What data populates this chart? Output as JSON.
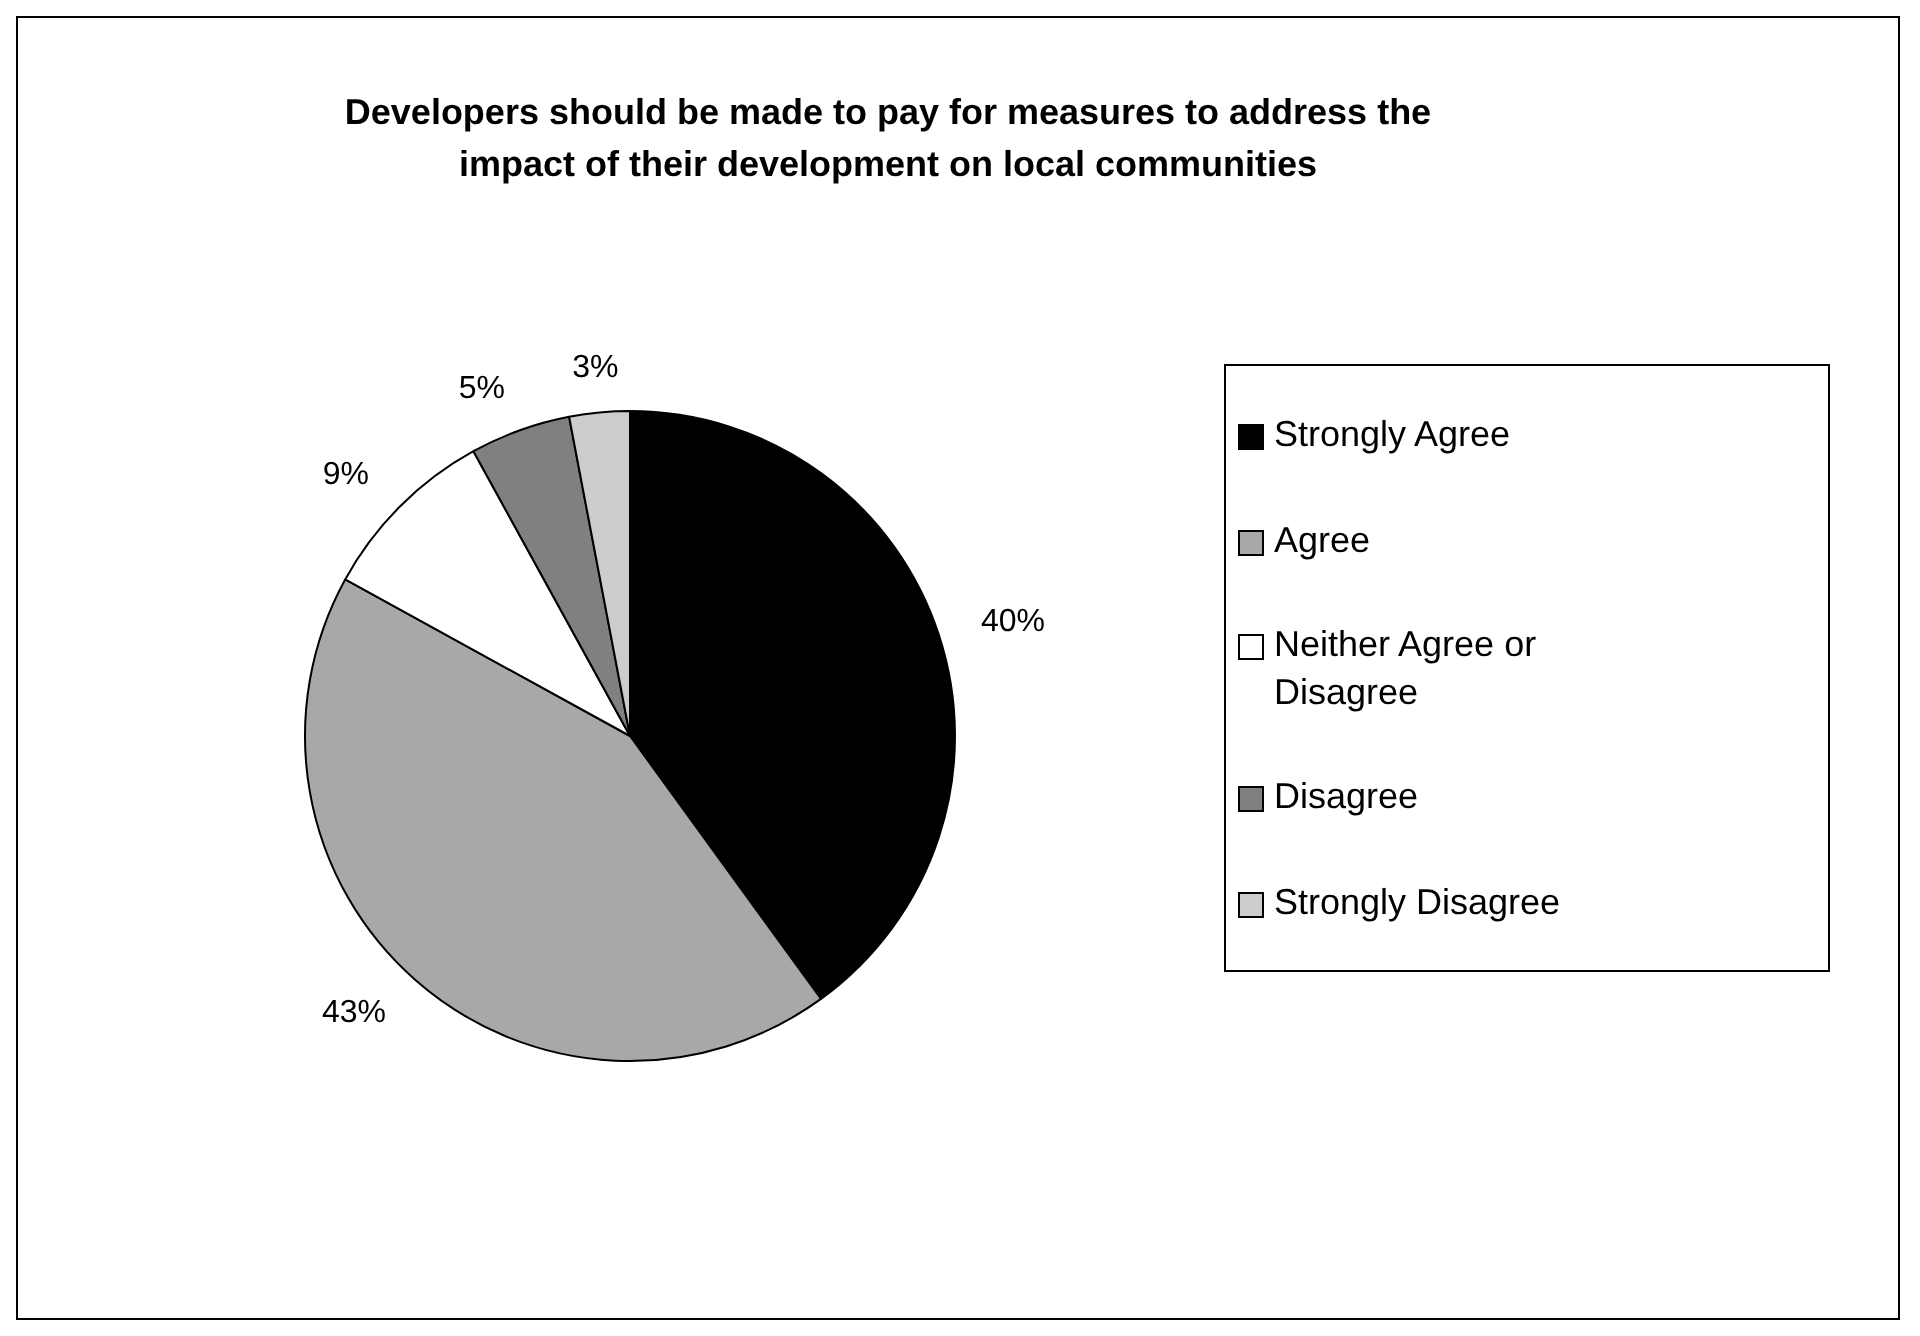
{
  "chart_data": {
    "type": "pie",
    "title": "Developers should be made to pay for measures to address the impact of their development on local communities",
    "categories": [
      "Strongly Agree",
      "Agree",
      "Neither Agree or Disagree",
      "Disagree",
      "Strongly Disagree"
    ],
    "values": [
      40,
      43,
      9,
      5,
      3
    ],
    "colors": [
      "#000000",
      "#a8a8a8",
      "#ffffff",
      "#808080",
      "#cccccc"
    ],
    "value_labels": [
      "40%",
      "43%",
      "9%",
      "5%",
      "3%"
    ],
    "legend": "right"
  }
}
